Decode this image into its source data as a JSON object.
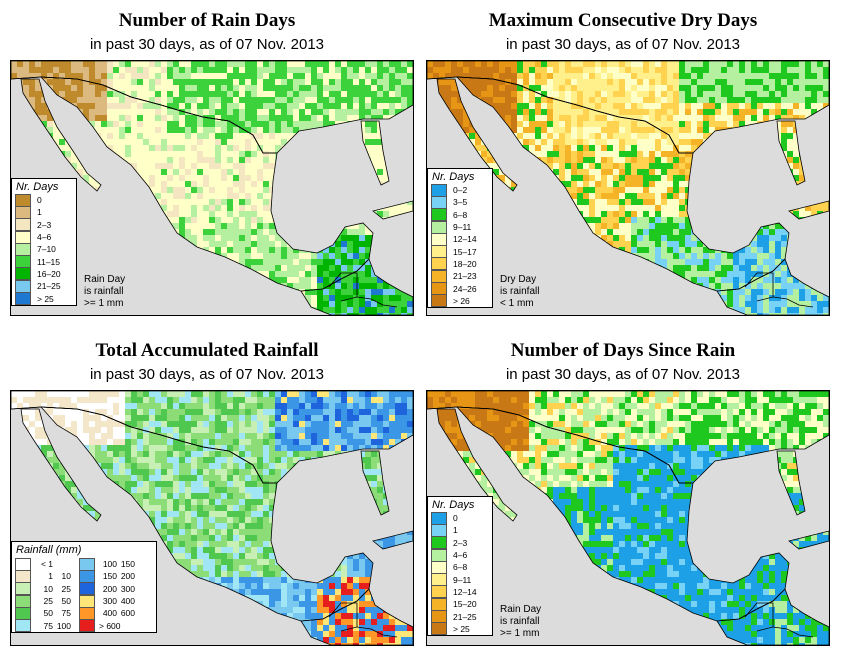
{
  "colors": {
    "ocean": "#dcdcdc",
    "border": "#000000"
  },
  "panels": [
    {
      "title": "Number of Rain Days",
      "subtitle": "in past 30 days, as of  07 Nov. 2013",
      "legend": {
        "title": "Nr. Days",
        "items": [
          {
            "label": "0",
            "color": "#bf8a2b"
          },
          {
            "label": "1",
            "color": "#dcb97f"
          },
          {
            "label": "2–3",
            "color": "#f4e6c1"
          },
          {
            "label": "4–6",
            "color": "#ffffc8"
          },
          {
            "label": "7–10",
            "color": "#b4f0a0"
          },
          {
            "label": "11–15",
            "color": "#3cd23c"
          },
          {
            "label": "16–20",
            "color": "#00b400"
          },
          {
            "label": "21–25",
            "color": "#78c8f0"
          },
          {
            "label": "> 25",
            "color": "#1e78d2"
          }
        ]
      },
      "note": [
        "Rain Day",
        "is rainfall",
        ">= 1 mm"
      ],
      "palette": [
        "#bf8a2b",
        "#dcb97f",
        "#f4e6c1",
        "#ffffc8",
        "#b4f0a0",
        "#3cd23c",
        "#00b400",
        "#78c8f0",
        "#1e78d2"
      ]
    },
    {
      "title": "Maximum Consecutive Dry Days",
      "subtitle": "in past 30 days, as of  07 Nov. 2013",
      "legend": {
        "title": "Nr. Days",
        "items": [
          {
            "label": "0–2",
            "color": "#1ea0e6"
          },
          {
            "label": "3–5",
            "color": "#78d2f5"
          },
          {
            "label": "6–8",
            "color": "#1ec81e"
          },
          {
            "label": "9–11",
            "color": "#b4f0a0"
          },
          {
            "label": "12–14",
            "color": "#ffffc8"
          },
          {
            "label": "15–17",
            "color": "#fff08c"
          },
          {
            "label": "18–20",
            "color": "#ffd250"
          },
          {
            "label": "21–23",
            "color": "#f5b428"
          },
          {
            "label": "24–26",
            "color": "#e69614"
          },
          {
            "label": "> 26",
            "color": "#c87814"
          }
        ]
      },
      "note": [
        "Dry Day",
        "is rainfall",
        "< 1 mm"
      ],
      "palette": [
        "#1ea0e6",
        "#78d2f5",
        "#1ec81e",
        "#b4f0a0",
        "#ffffc8",
        "#fff08c",
        "#ffd250",
        "#f5b428",
        "#e69614",
        "#c87814"
      ]
    },
    {
      "title": "Total Accumulated Rainfall",
      "subtitle": "in past 30 days, as of  07 Nov. 2013",
      "legend": {
        "title": "Rainfall (mm)",
        "left": [
          {
            "lo": "< 1",
            "hi": "",
            "color": "#ffffff"
          },
          {
            "lo": "1",
            "hi": "10",
            "color": "#f4e6c8"
          },
          {
            "lo": "10",
            "hi": "25",
            "color": "#c8f0b4"
          },
          {
            "lo": "25",
            "hi": "50",
            "color": "#8cdc78"
          },
          {
            "lo": "50",
            "hi": "75",
            "color": "#50c850"
          },
          {
            "lo": "75",
            "hi": "100",
            "color": "#a0e6f5"
          }
        ],
        "right": [
          {
            "lo": "100",
            "hi": "150",
            "color": "#78c8f0"
          },
          {
            "lo": "150",
            "hi": "200",
            "color": "#3c96e6"
          },
          {
            "lo": "200",
            "hi": "300",
            "color": "#1e64dc"
          },
          {
            "lo": "300",
            "hi": "400",
            "color": "#ffe678"
          },
          {
            "lo": "400",
            "hi": "600",
            "color": "#ff9628"
          },
          {
            "lo": "> 600",
            "hi": "",
            "color": "#e61e1e"
          }
        ]
      },
      "palette": [
        "#ffffff",
        "#f4e6c8",
        "#c8f0b4",
        "#8cdc78",
        "#50c850",
        "#a0e6f5",
        "#78c8f0",
        "#3c96e6",
        "#1e64dc",
        "#ffe678",
        "#ff9628",
        "#e61e1e"
      ]
    },
    {
      "title": "Number of Days Since Rain",
      "subtitle": "in past 30 days, as of  07 Nov. 2013",
      "legend": {
        "title": "Nr. Days",
        "items": [
          {
            "label": "0",
            "color": "#1ea0e6"
          },
          {
            "label": "1",
            "color": "#78d2f5"
          },
          {
            "label": "2–3",
            "color": "#1ec81e"
          },
          {
            "label": "4–6",
            "color": "#b4f0a0"
          },
          {
            "label": "6–8",
            "color": "#ffffc8"
          },
          {
            "label": "9–11",
            "color": "#fff08c"
          },
          {
            "label": "12–14",
            "color": "#ffd250"
          },
          {
            "label": "15–20",
            "color": "#f5b428"
          },
          {
            "label": "21–25",
            "color": "#e69614"
          },
          {
            "label": "> 25",
            "color": "#c87814"
          }
        ]
      },
      "note": [
        "Rain Day",
        "is rainfall",
        ">= 1 mm"
      ],
      "palette": [
        "#1ea0e6",
        "#78d2f5",
        "#1ec81e",
        "#b4f0a0",
        "#ffffc8",
        "#fff08c",
        "#ffd250",
        "#f5b428",
        "#e69614",
        "#c87814"
      ]
    }
  ]
}
